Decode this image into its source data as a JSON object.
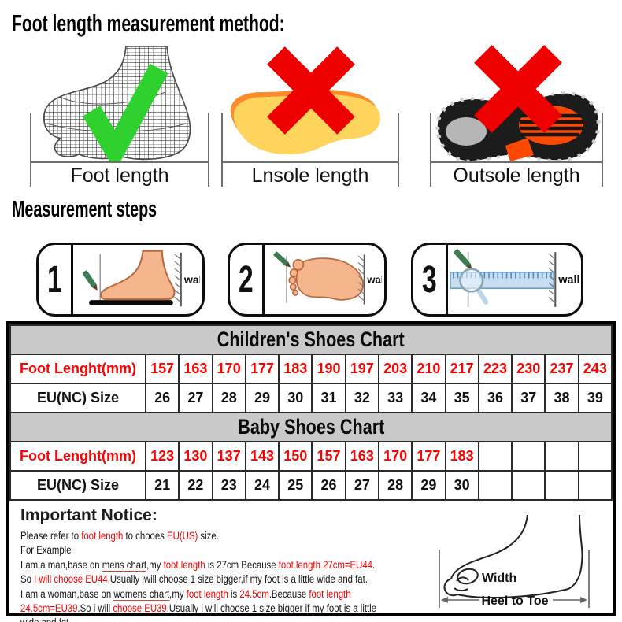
{
  "title": "Foot length measurement method:",
  "method": {
    "items": [
      {
        "label": "Foot length",
        "mark": "check"
      },
      {
        "label": "Lnsole length",
        "mark": "cross"
      },
      {
        "label": "Outsole length",
        "mark": "cross"
      }
    ]
  },
  "steps": {
    "title": "Measurement steps",
    "wall_label": "wall",
    "items": [
      {
        "number": "1"
      },
      {
        "number": "2"
      },
      {
        "number": "3"
      }
    ]
  },
  "charts": [
    {
      "title": "Children's Shoes Chart",
      "rows": [
        {
          "label": "Foot Lenght(mm)",
          "color": "red",
          "values": [
            "157",
            "163",
            "170",
            "177",
            "183",
            "190",
            "197",
            "203",
            "210",
            "217",
            "223",
            "230",
            "237",
            "243"
          ]
        },
        {
          "label": "EU(NC) Size",
          "color": "black",
          "values": [
            "26",
            "27",
            "28",
            "29",
            "30",
            "31",
            "32",
            "33",
            "34",
            "35",
            "36",
            "37",
            "38",
            "39"
          ]
        }
      ]
    },
    {
      "title": "Baby Shoes Chart",
      "rows": [
        {
          "label": "Foot Lenght(mm)",
          "color": "red",
          "values": [
            "123",
            "130",
            "137",
            "143",
            "150",
            "157",
            "163",
            "170",
            "177",
            "183",
            "",
            "",
            "",
            ""
          ]
        },
        {
          "label": "EU(NC) Size",
          "color": "black",
          "values": [
            "21",
            "22",
            "23",
            "24",
            "25",
            "26",
            "27",
            "28",
            "29",
            "30",
            "",
            "",
            "",
            ""
          ]
        }
      ]
    }
  ],
  "notice": {
    "heading": "Important Notice:",
    "lines": [
      [
        {
          "t": "Please refer to "
        },
        {
          "t": "foot length",
          "c": "red"
        },
        {
          "t": " to chooes "
        },
        {
          "t": "EU(US)",
          "c": "red"
        },
        {
          "t": " size."
        }
      ],
      [
        {
          "t": "For Example"
        }
      ],
      [
        {
          "t": "I am a man,base on "
        },
        {
          "t": "mens chart",
          "u": true
        },
        {
          "t": ",my "
        },
        {
          "t": "foot length",
          "c": "red"
        },
        {
          "t": " is 27cm Because "
        },
        {
          "t": "foot length 27cm=EU44",
          "c": "red"
        },
        {
          "t": "."
        }
      ],
      [
        {
          "t": "So "
        },
        {
          "t": "I will choose EU44",
          "c": "red"
        },
        {
          "t": ".Usually iwill choose 1 size bigger,if my foot is a little wide and fat."
        }
      ],
      [
        {
          "t": "I am a woman,base on "
        },
        {
          "t": "womens chart",
          "u": true
        },
        {
          "t": ",my "
        },
        {
          "t": "foot length",
          "c": "red"
        },
        {
          "t": " is "
        },
        {
          "t": "24.5cm",
          "c": "red"
        },
        {
          "t": ".Because "
        },
        {
          "t": "foot length",
          "c": "red"
        }
      ],
      [
        {
          "t": "24.5cm=EU39",
          "c": "red"
        },
        {
          "t": ".So i will "
        },
        {
          "t": "choose EU39",
          "c": "red"
        },
        {
          "t": ".Usually i will choose 1 size bigger if my foot is a little"
        }
      ],
      [
        {
          "t": "wide and fat..."
        }
      ]
    ],
    "diagram": {
      "width_label": "Width",
      "heel_label": "Heel to Toe"
    }
  },
  "colors": {
    "accent_red_text": "#ff0000",
    "chart_header_bg": "#c9c9c9",
    "check_green": "#2fd12f",
    "cross_red": "#ee0000",
    "insole_yellow": "#ffd45c",
    "insole_orange": "#ff8a2b",
    "skin": "#f6b68d",
    "ruler_blue": "#c8ddf0"
  }
}
